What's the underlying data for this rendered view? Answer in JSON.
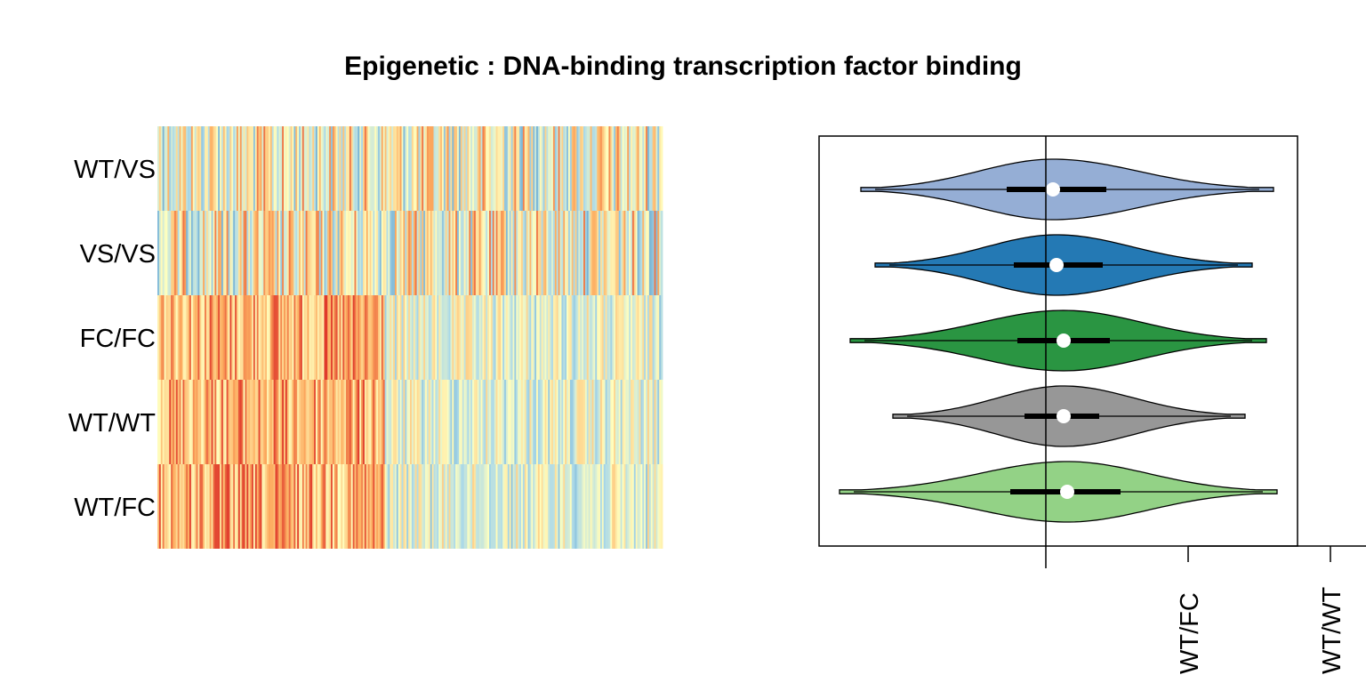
{
  "chart_data": [
    {
      "type": "heatmap",
      "title": "Epigenetic : DNA-binding transcription factor binding",
      "rows": [
        "WT/VS",
        "VS/VS",
        "FC/FC",
        "WT/WT",
        "WT/FC"
      ],
      "palette": [
        "#d7191c",
        "#fdae61",
        "#ffffbf",
        "#abd9e9",
        "#2c7bb6"
      ],
      "legend": "none",
      "grid": false
    },
    {
      "type": "violin",
      "orientation": "horizontal",
      "groups": [
        {
          "name": "WT/VS",
          "color": "#95aed5",
          "min": -0.52,
          "q1": -0.11,
          "median": 0.02,
          "q3": 0.17,
          "max": 0.64
        },
        {
          "name": "VS/VS",
          "color": "#2479b4",
          "min": -0.48,
          "q1": -0.09,
          "median": 0.03,
          "q3": 0.16,
          "max": 0.58
        },
        {
          "name": "FC/FC",
          "color": "#2a9542",
          "min": -0.55,
          "q1": -0.08,
          "median": 0.05,
          "q3": 0.18,
          "max": 0.62
        },
        {
          "name": "WT/WT",
          "color": "#979797",
          "min": -0.43,
          "q1": -0.06,
          "median": 0.05,
          "q3": 0.15,
          "max": 0.56
        },
        {
          "name": "WT/FC",
          "color": "#93d286",
          "min": -0.58,
          "q1": -0.1,
          "median": 0.06,
          "q3": 0.21,
          "max": 0.65
        }
      ],
      "reference_line": 0,
      "xlim": [
        -0.63,
        0.7
      ],
      "x_tick_labels": [
        "WT/FC",
        "WT/WT"
      ],
      "legend": "none",
      "grid": false
    }
  ]
}
